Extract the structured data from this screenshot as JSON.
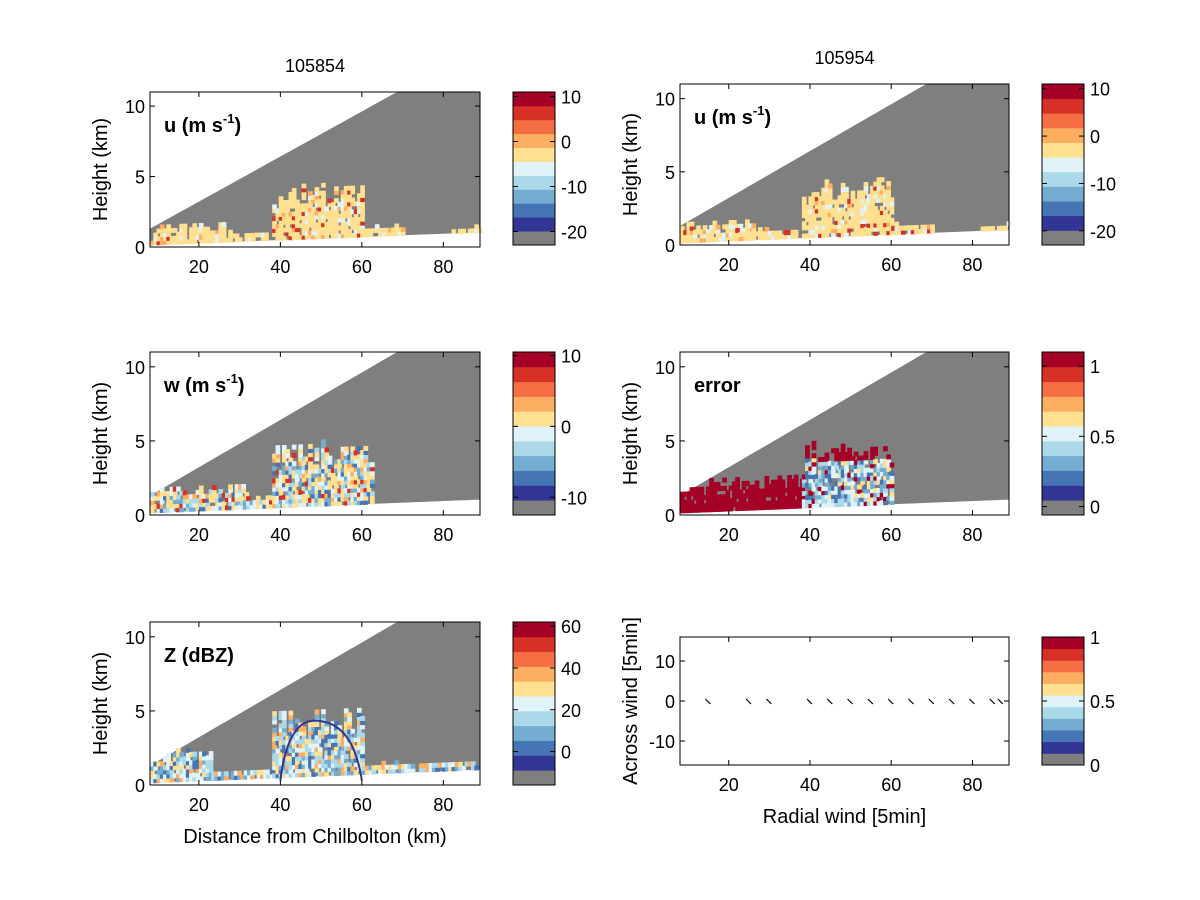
{
  "chart_data": [
    {
      "type": "heatmap",
      "title": "105854",
      "label": "u (m s",
      "label_sup": "-1",
      "label_tail": ")",
      "ylabel": "Height (km)",
      "xlabel": "",
      "xlim": [
        8,
        89
      ],
      "ylim": [
        0,
        11
      ],
      "xticks": [
        "20",
        "40",
        "60",
        "80"
      ],
      "yticks": [
        "0",
        "5",
        "10"
      ],
      "colorbar": {
        "ticks": [
          {
            "value": 10,
            "label": "10"
          },
          {
            "value": 0,
            "label": "0"
          },
          {
            "value": -10,
            "label": "-10"
          },
          {
            "value": -20,
            "label": "-20"
          }
        ],
        "vmin": -23,
        "vmax": 11
      },
      "field": "u"
    },
    {
      "type": "heatmap",
      "title": "105954",
      "label": "u (m s",
      "label_sup": "-1",
      "label_tail": ")",
      "ylabel": "Height (km)",
      "xlabel": "",
      "xlim": [
        8,
        89
      ],
      "ylim": [
        0,
        11
      ],
      "xticks": [
        "20",
        "40",
        "60",
        "80"
      ],
      "yticks": [
        "0",
        "5",
        "10"
      ],
      "colorbar": {
        "ticks": [
          {
            "value": 10,
            "label": "10"
          },
          {
            "value": 0,
            "label": "0"
          },
          {
            "value": -10,
            "label": "-10"
          },
          {
            "value": -20,
            "label": "-20"
          }
        ],
        "vmin": -23,
        "vmax": 11
      },
      "field": "u"
    },
    {
      "type": "heatmap",
      "title": "",
      "label": "w (m s",
      "label_sup": "-1",
      "label_tail": ")",
      "ylabel": "Height (km)",
      "xlabel": "",
      "xlim": [
        8,
        89
      ],
      "ylim": [
        0,
        11
      ],
      "xticks": [
        "20",
        "40",
        "60",
        "80"
      ],
      "yticks": [
        "0",
        "5",
        "10"
      ],
      "colorbar": {
        "ticks": [
          {
            "value": 10,
            "label": "10"
          },
          {
            "value": 0,
            "label": "0"
          },
          {
            "value": -10,
            "label": "-10"
          }
        ],
        "vmin": -12.5,
        "vmax": 10.5
      },
      "field": "w"
    },
    {
      "type": "heatmap",
      "title": "",
      "label": "error",
      "label_sup": "",
      "label_tail": "",
      "ylabel": "Height (km)",
      "xlabel": "",
      "xlim": [
        8,
        89
      ],
      "ylim": [
        0,
        11
      ],
      "xticks": [
        "20",
        "40",
        "60",
        "80"
      ],
      "yticks": [
        "0",
        "5",
        "10"
      ],
      "colorbar": {
        "ticks": [
          {
            "value": 1,
            "label": "1"
          },
          {
            "value": 0.5,
            "label": "0.5"
          },
          {
            "value": 0,
            "label": "0"
          }
        ],
        "vmin": -0.06,
        "vmax": 1.1
      },
      "field": "error"
    },
    {
      "type": "heatmap",
      "title": "",
      "label": "Z (dBZ)",
      "label_sup": "",
      "label_tail": "",
      "ylabel": "Height (km)",
      "xlabel": "Distance from Chilbolton (km)",
      "xlim": [
        8,
        89
      ],
      "ylim": [
        0,
        11
      ],
      "xticks": [
        "20",
        "40",
        "60",
        "80"
      ],
      "yticks": [
        "0",
        "5",
        "10"
      ],
      "colorbar": {
        "ticks": [
          {
            "value": 60,
            "label": "60"
          },
          {
            "value": 40,
            "label": "40"
          },
          {
            "value": 20,
            "label": "20"
          },
          {
            "value": 0,
            "label": "0"
          }
        ],
        "vmin": -16,
        "vmax": 62
      },
      "field": "Z"
    },
    {
      "type": "scatter",
      "title": "",
      "label": "",
      "ylabel": "Across wind [5min]",
      "xlabel": "Radial wind [5min]",
      "xlim": [
        8,
        89
      ],
      "ylim": [
        -16,
        16
      ],
      "xticks": [
        "20",
        "40",
        "60",
        "80"
      ],
      "yticks": [
        "10",
        "0",
        "-10"
      ],
      "colorbar": {
        "ticks": [
          {
            "value": 1,
            "label": "1"
          },
          {
            "value": 0.5,
            "label": "0.5"
          },
          {
            "value": 0,
            "label": "0"
          }
        ],
        "vmin": 0,
        "vmax": 1
      },
      "x": [
        15,
        25,
        30,
        40,
        45,
        50,
        55,
        60,
        65,
        70,
        75,
        80,
        85,
        87
      ],
      "y": [
        0,
        0,
        0,
        0,
        0,
        0,
        0,
        0,
        0,
        0,
        0,
        0,
        0,
        0
      ]
    }
  ],
  "colors": {
    "colormap": [
      "#7f7f7f",
      "#313695",
      "#4575b4",
      "#74add1",
      "#abd9e9",
      "#e0f3f8",
      "#fee090",
      "#fdae61",
      "#f46d43",
      "#d73027",
      "#a50026"
    ],
    "background_fill": "#7f7f7f"
  }
}
